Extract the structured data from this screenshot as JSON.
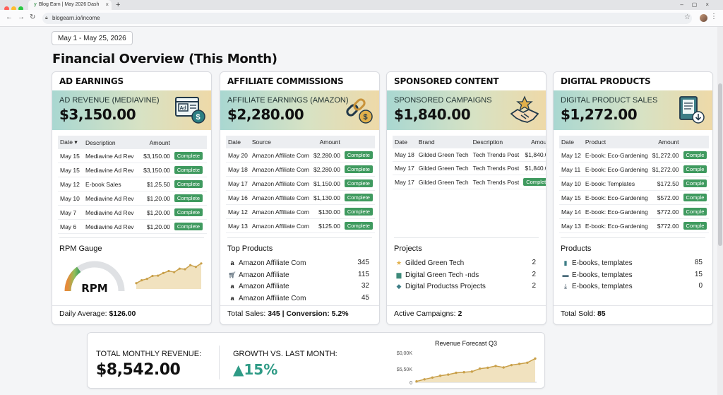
{
  "browser": {
    "tab_title": "Blog Earn | May 2026 Dash",
    "url": "blogearn.io/income"
  },
  "page": {
    "date_range": "May 1 - May 25, 2026",
    "title": "Financial Overview (This Month)"
  },
  "status_colors": {
    "complete": "#3f9a5f",
    "growth": "#2f9b86"
  },
  "cards": {
    "ad": {
      "title": "AD EARNINGS",
      "hero_label": "AD REVENUE (MEDIAVINE)",
      "hero_value": "$3,150.00",
      "icon": "ad-browser-icon",
      "columns": [
        "Date",
        "Description",
        "Amount"
      ],
      "rows": [
        {
          "date": "May 15",
          "desc": "Mediavine Ad Rev",
          "amount": "$3,150.00",
          "status": "Complete"
        },
        {
          "date": "May 15",
          "desc": "Mediavine Ad Rev",
          "amount": "$3,150.00",
          "status": "Complete"
        },
        {
          "date": "May 12",
          "desc": "E-book Sales",
          "amount": "$1,25.50",
          "status": "Complete"
        },
        {
          "date": "May 10",
          "desc": "Mediavine Ad Rev",
          "amount": "$1,20.00",
          "status": "Complete"
        },
        {
          "date": "May 7",
          "desc": "Mediavine Ad Rev",
          "amount": "$1,20.00",
          "status": "Complete"
        },
        {
          "date": "May 6",
          "desc": "Mediavine Ad Rev",
          "amount": "$1,20.00",
          "status": "Complete"
        }
      ],
      "gauge_title": "RPM Gauge",
      "gauge_label": "RPM",
      "gauge_level": 0.3,
      "sparkline": [
        2,
        3,
        3.5,
        4.5,
        4.6,
        5.5,
        6.2,
        5.8,
        7,
        6.8,
        8.2,
        7.6,
        8.8
      ],
      "footer_label": "Daily Average:",
      "footer_value": "$126.00"
    },
    "affiliate": {
      "title": "AFFILIATE COMMISSIONS",
      "hero_label": "AFFILIATE EARNINGS (AMAZON)",
      "hero_value": "$2,280.00",
      "icon": "chain-dollar-icon",
      "columns": [
        "Date",
        "Source",
        "Amount"
      ],
      "rows": [
        {
          "date": "May 20",
          "source": "Amazon Affiliate Com",
          "amount": "$2,280.00",
          "status": "Complete"
        },
        {
          "date": "May 18",
          "source": "Amazon Affiliate Com",
          "amount": "$2,280.00",
          "status": "Complete"
        },
        {
          "date": "May 17",
          "source": "Amazon Affiliate Com",
          "amount": "$1,150.00",
          "status": "Complete"
        },
        {
          "date": "May 16",
          "source": "Amazon Affiliate Com",
          "amount": "$1,130.00",
          "status": "Complete"
        },
        {
          "date": "May 12",
          "source": "Amazon Affiliate Com",
          "amount": "$130.00",
          "status": "Complete"
        },
        {
          "date": "May 13",
          "source": "Amazon Affiliate Com",
          "amount": "$125.00",
          "status": "Complete"
        }
      ],
      "list_title": "Top Products",
      "products": [
        {
          "icon": "a",
          "name": "Amazon Affiliate Com",
          "value": "345"
        },
        {
          "icon": "cart",
          "name": "Amazon Affiliate",
          "value": "115"
        },
        {
          "icon": "a",
          "name": "Amazon Affiliate",
          "value": "32"
        },
        {
          "icon": "a",
          "name": "Amazon Affiliate Com",
          "value": "45"
        }
      ],
      "footer_label": "Total Sales:",
      "footer_value": "345 | Conversion: 5.2%"
    },
    "sponsored": {
      "title": "SPONSORED CONTENT",
      "hero_label": "SPONSORED CAMPAIGNS",
      "hero_value": "$1,840.00",
      "icon": "handshake-star-icon",
      "columns": [
        "Date",
        "Brand",
        "Description",
        "Amount"
      ],
      "rows": [
        {
          "date": "May 18",
          "brand": "Gilded Green Tech",
          "desc": "Tech Trends Post",
          "amount": "$1,840.00"
        },
        {
          "date": "May 17",
          "brand": "Gilded Green Tech",
          "desc": "Tech Trends Post",
          "amount": "$1,840.00"
        },
        {
          "date": "May 17",
          "brand": "Gilded Green Tech",
          "desc": "Tech Trends Post",
          "amount": "Complete"
        }
      ],
      "list_title": "Projects",
      "projects": [
        {
          "icon": "star",
          "name": "Gilded Green Tech",
          "value": "2"
        },
        {
          "icon": "folder",
          "name": "Digital Green Tech -nds",
          "value": "2"
        },
        {
          "icon": "cap",
          "name": "Digital Productss Projects",
          "value": "2"
        }
      ],
      "footer_label": "Active Campaigns:",
      "footer_value": "2"
    },
    "digital": {
      "title": "DIGITAL PRODUCTS",
      "hero_label": "DIGITAL PRODUCT SALES",
      "hero_value": "$1,272.00",
      "icon": "ebook-download-icon",
      "columns": [
        "Date",
        "Product",
        "Amount"
      ],
      "rows": [
        {
          "date": "May 12",
          "product": "E-book: Eco-Gardening",
          "amount": "$1,272.00",
          "status": "Comple"
        },
        {
          "date": "May 11",
          "product": "E-book: Eco-Gardening",
          "amount": "$1,272.00",
          "status": "Comple"
        },
        {
          "date": "May 10",
          "product": "E-book: Templates",
          "amount": "$172.50",
          "status": "Comple"
        },
        {
          "date": "May 15",
          "product": "E-book: Eco-Gardening",
          "amount": "$572.00",
          "status": "Comple"
        },
        {
          "date": "May 14",
          "product": "E-book: Eco-Gardening",
          "amount": "$772.00",
          "status": "Comple"
        },
        {
          "date": "May 13",
          "product": "E-book: Eco-Gardening",
          "amount": "$772.00",
          "status": "Comple"
        }
      ],
      "list_title": "Products",
      "products": [
        {
          "icon": "book",
          "name": "E-books, templates",
          "value": "85"
        },
        {
          "icon": "tablet",
          "name": "E-books, templates",
          "value": "15"
        },
        {
          "icon": "download",
          "name": "E-books, templates",
          "value": "0"
        }
      ],
      "footer_label": "Total Sold:",
      "footer_value": "85"
    }
  },
  "summary": {
    "total_label": "TOTAL MONTHLY REVENUE:",
    "total_value": "$8,542.00",
    "growth_label": "GROWTH vs. LAST MONTH:",
    "growth_value": "15%"
  },
  "chart_data": {
    "type": "area",
    "title": "Revenue Forecast Q3",
    "y_ticks": [
      "$0,00K",
      "$5,50K",
      "0"
    ],
    "series": [
      {
        "values": [
          0.3,
          1.0,
          1.6,
          2.2,
          2.6,
          3.2,
          3.4,
          3.6,
          4.6,
          4.9,
          5.5,
          5.0,
          5.8,
          6.2,
          6.6,
          8.0
        ]
      }
    ],
    "ylim": [
      0,
      10
    ]
  }
}
